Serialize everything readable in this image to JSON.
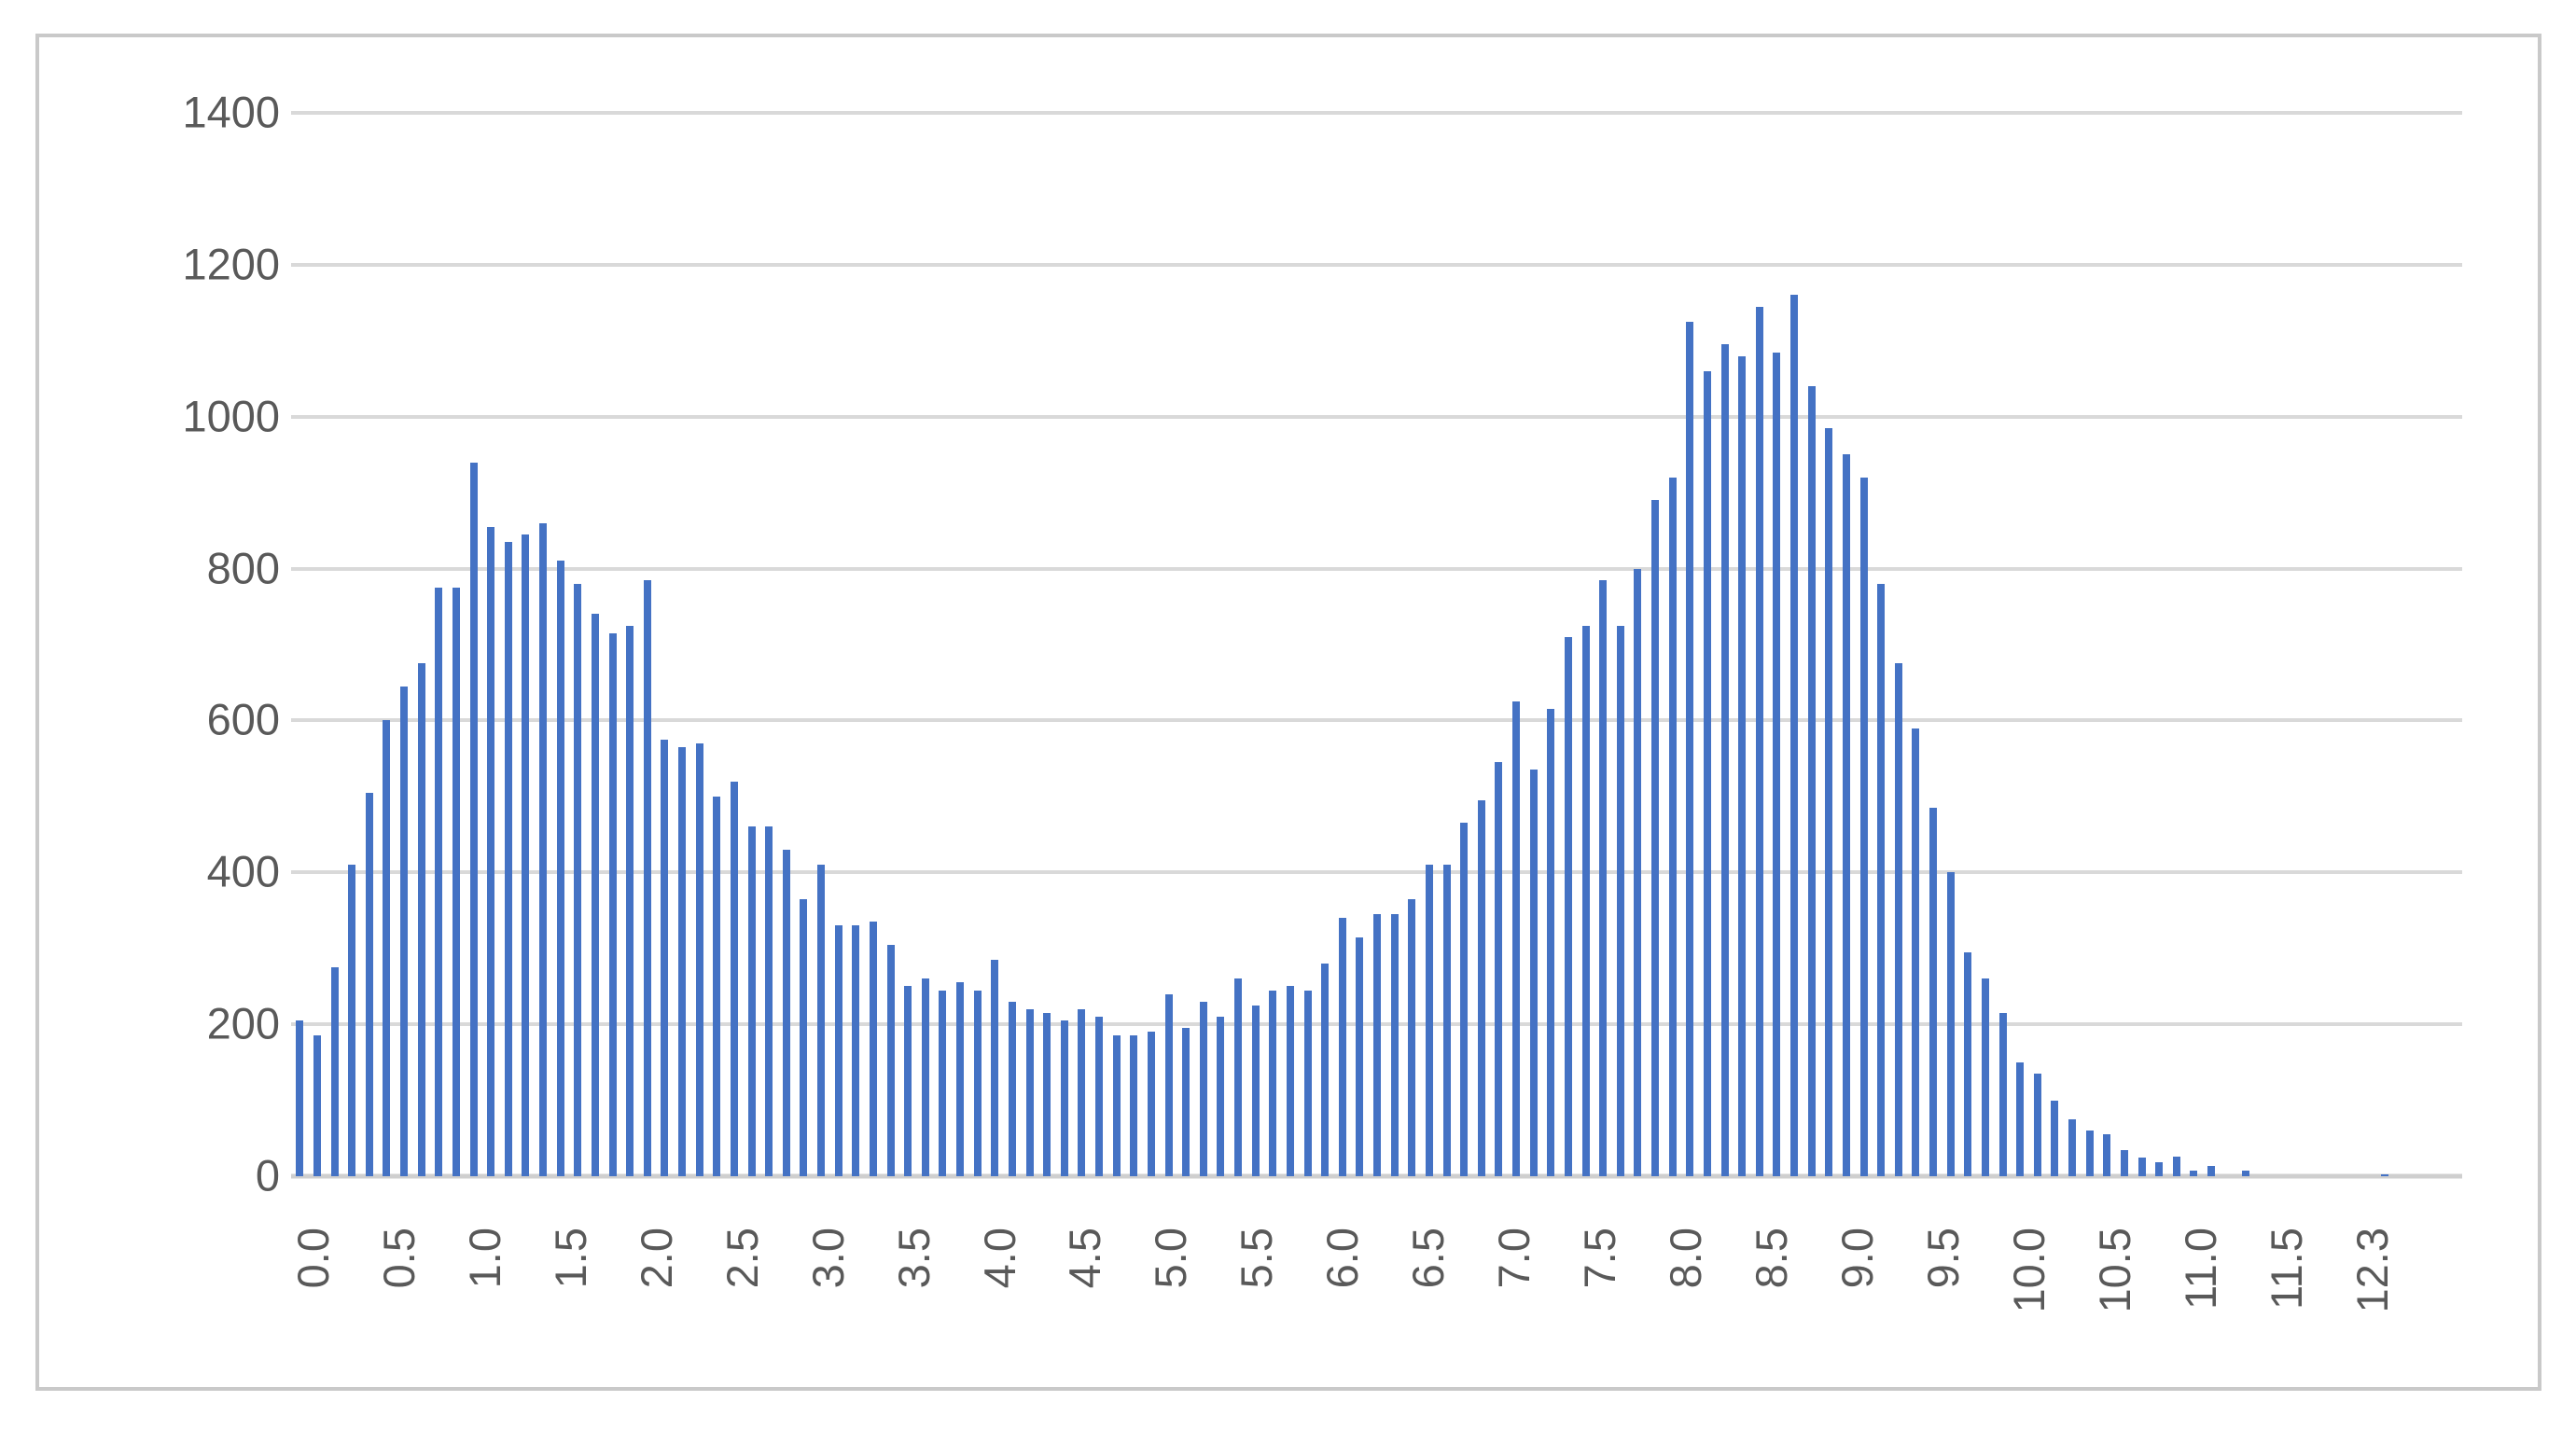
{
  "chart_data": {
    "type": "bar",
    "title": "",
    "xlabel": "",
    "ylabel": "",
    "legend": "none",
    "grid": true,
    "ylim": [
      0,
      1400
    ],
    "y_ticks": [
      "0",
      "200",
      "400",
      "600",
      "800",
      "1000",
      "1200",
      "1400"
    ],
    "x_label_interval": 5,
    "x_tick_labels": [
      "0.0",
      "0.5",
      "1.0",
      "1.5",
      "2.0",
      "2.5",
      "3.0",
      "3.5",
      "4.0",
      "4.5",
      "5.0",
      "5.5",
      "6.0",
      "6.5",
      "7.0",
      "7.5",
      "8.0",
      "8.5",
      "9.0",
      "9.5",
      "10.0",
      "10.5",
      "11.0",
      "11.5",
      "12.3"
    ],
    "categories": [
      "0.0",
      "0.1",
      "0.2",
      "0.3",
      "0.4",
      "0.5",
      "0.6",
      "0.7",
      "0.8",
      "0.9",
      "1.0",
      "1.1",
      "1.2",
      "1.3",
      "1.4",
      "1.5",
      "1.6",
      "1.7",
      "1.8",
      "1.9",
      "2.0",
      "2.1",
      "2.2",
      "2.3",
      "2.4",
      "2.5",
      "2.6",
      "2.7",
      "2.8",
      "2.9",
      "3.0",
      "3.1",
      "3.2",
      "3.3",
      "3.4",
      "3.5",
      "3.6",
      "3.7",
      "3.8",
      "3.9",
      "4.0",
      "4.1",
      "4.2",
      "4.3",
      "4.4",
      "4.5",
      "4.6",
      "4.7",
      "4.8",
      "4.9",
      "5.0",
      "5.1",
      "5.2",
      "5.3",
      "5.4",
      "5.5",
      "5.6",
      "5.7",
      "5.8",
      "5.9",
      "6.0",
      "6.1",
      "6.2",
      "6.3",
      "6.4",
      "6.5",
      "6.6",
      "6.7",
      "6.8",
      "6.9",
      "7.0",
      "7.1",
      "7.2",
      "7.3",
      "7.4",
      "7.5",
      "7.6",
      "7.7",
      "7.8",
      "7.9",
      "8.0",
      "8.1",
      "8.2",
      "8.3",
      "8.4",
      "8.5",
      "8.6",
      "8.7",
      "8.8",
      "8.9",
      "9.0",
      "9.1",
      "9.2",
      "9.3",
      "9.4",
      "9.5",
      "9.6",
      "9.7",
      "9.8",
      "9.9",
      "10.0",
      "10.1",
      "10.2",
      "10.3",
      "10.4",
      "10.5",
      "10.6",
      "10.7",
      "10.8",
      "10.9",
      "11.0",
      "11.1",
      "11.2",
      "11.3",
      "11.4",
      "11.5",
      "11.6",
      "11.7",
      "11.8",
      "11.9",
      "12.3"
    ],
    "values": [
      205,
      185,
      275,
      410,
      505,
      600,
      645,
      675,
      775,
      775,
      940,
      855,
      835,
      845,
      860,
      810,
      780,
      740,
      715,
      725,
      785,
      575,
      565,
      570,
      500,
      520,
      460,
      460,
      430,
      365,
      410,
      330,
      330,
      335,
      305,
      250,
      260,
      245,
      255,
      245,
      285,
      230,
      220,
      215,
      205,
      220,
      210,
      185,
      185,
      190,
      240,
      195,
      230,
      210,
      260,
      225,
      245,
      250,
      245,
      280,
      340,
      315,
      345,
      345,
      365,
      410,
      410,
      465,
      495,
      545,
      625,
      535,
      615,
      710,
      725,
      785,
      725,
      800,
      890,
      920,
      1125,
      1060,
      1095,
      1080,
      1145,
      1085,
      1160,
      1040,
      985,
      950,
      920,
      780,
      675,
      590,
      485,
      400,
      295,
      260,
      215,
      150,
      135,
      100,
      75,
      60,
      55,
      35,
      25,
      18,
      26,
      8,
      13,
      0,
      7,
      0,
      0,
      0,
      0,
      0,
      0,
      0,
      2
    ],
    "colors": {
      "bar": "#4472C4",
      "gridline": "#D9D9D9",
      "axis_labels": "#595959",
      "frame_border": "#C9C9C9",
      "background": "#FFFFFF"
    }
  }
}
